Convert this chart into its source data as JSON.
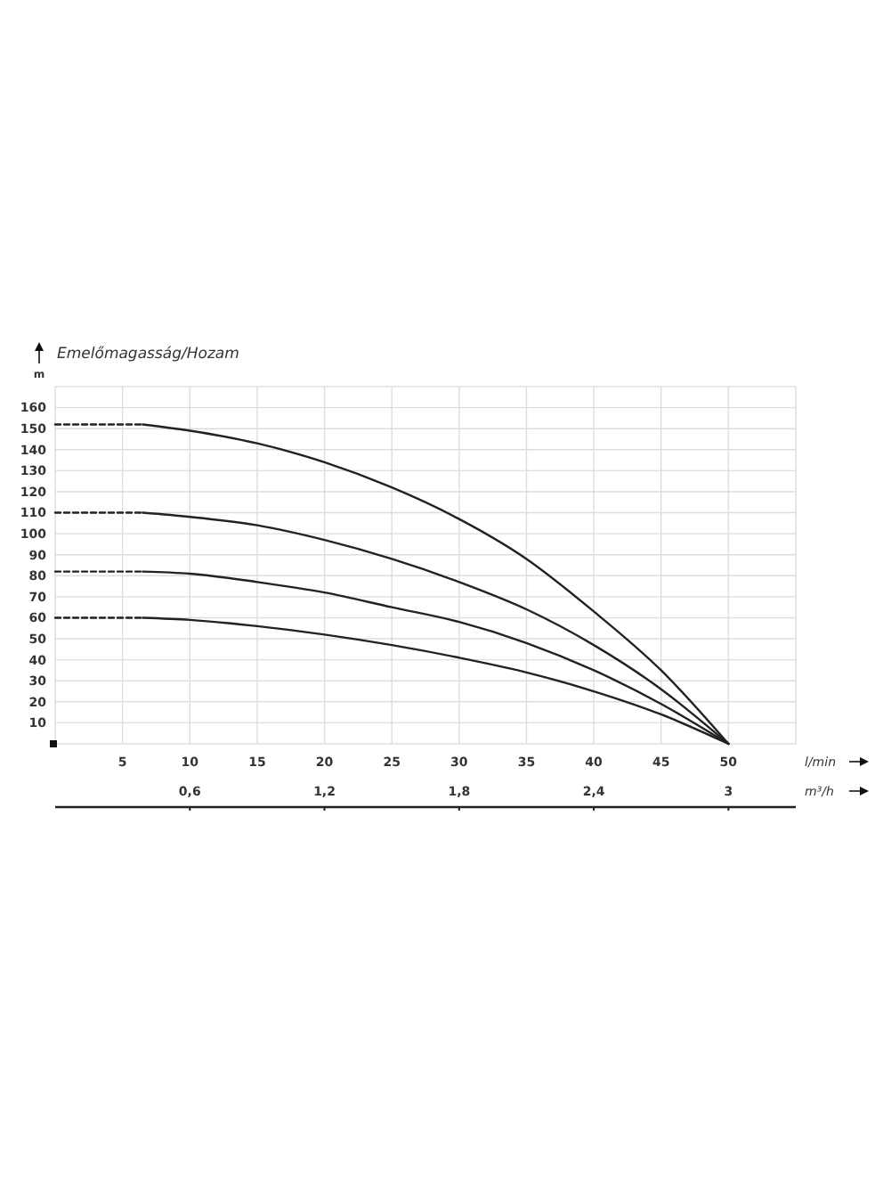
{
  "chart_data": {
    "type": "line",
    "title": "Emelőmagasság/Hozam",
    "ylabel": "m",
    "xlabel": "l/min",
    "x2label": "m³/h",
    "xlim": [
      0,
      55
    ],
    "xticks": [
      5,
      10,
      15,
      20,
      25,
      30,
      35,
      40,
      45,
      50
    ],
    "x2lim": [
      0,
      3.3
    ],
    "x2ticks": [
      {
        "value": 0.6,
        "label": "0,6"
      },
      {
        "value": 1.2,
        "label": "1,2"
      },
      {
        "value": 1.8,
        "label": "1,8"
      },
      {
        "value": 2.4,
        "label": "2,4"
      },
      {
        "value": 3,
        "label": "3"
      }
    ],
    "ylim": [
      0,
      170
    ],
    "yticks": [
      10,
      20,
      30,
      40,
      50,
      60,
      70,
      80,
      90,
      100,
      110,
      120,
      130,
      140,
      150,
      160
    ],
    "grid": true,
    "series": [
      {
        "color": "#222222",
        "line_style": "dashed",
        "x": [
          0,
          6.5
        ],
        "values": [
          152,
          152
        ]
      },
      {
        "color": "#222222",
        "line_style": "solid",
        "x": [
          6.5,
          10,
          15,
          20,
          25,
          30,
          35,
          40,
          45,
          50
        ],
        "values": [
          152,
          149,
          143,
          134,
          122,
          107,
          88,
          63,
          35,
          0
        ]
      },
      {
        "color": "#222222",
        "line_style": "dashed",
        "x": [
          0,
          6.5
        ],
        "values": [
          110,
          110
        ]
      },
      {
        "color": "#222222",
        "line_style": "solid",
        "x": [
          6.5,
          10,
          15,
          20,
          25,
          30,
          35,
          40,
          45,
          50
        ],
        "values": [
          110,
          108,
          104,
          97,
          88,
          77,
          64,
          47,
          26,
          0
        ]
      },
      {
        "color": "#222222",
        "line_style": "dashed",
        "x": [
          0,
          6.5
        ],
        "values": [
          82,
          82
        ]
      },
      {
        "color": "#222222",
        "line_style": "solid",
        "x": [
          6.5,
          10,
          15,
          20,
          25,
          30,
          35,
          40,
          45,
          50
        ],
        "values": [
          82,
          81,
          77,
          72,
          65,
          58,
          48,
          35,
          19,
          0
        ]
      },
      {
        "color": "#222222",
        "line_style": "dashed",
        "x": [
          0,
          6.5
        ],
        "values": [
          60,
          60
        ]
      },
      {
        "color": "#222222",
        "line_style": "solid",
        "x": [
          6.5,
          10,
          15,
          20,
          25,
          30,
          35,
          40,
          45,
          50
        ],
        "values": [
          60,
          59,
          56,
          52,
          47,
          41,
          34,
          25,
          14,
          0
        ]
      }
    ]
  }
}
